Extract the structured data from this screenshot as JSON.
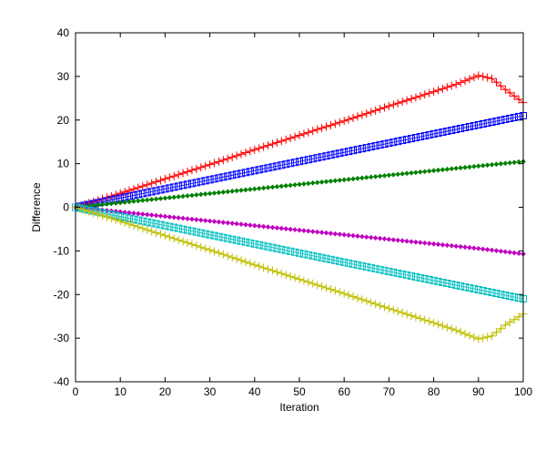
{
  "chart_data": {
    "type": "scatter",
    "title": "",
    "xlabel": "Iteration",
    "ylabel": "Difference",
    "xlim": [
      0,
      100
    ],
    "ylim": [
      -40,
      40
    ],
    "xticks": [
      "0",
      "10",
      "20",
      "30",
      "40",
      "50",
      "60",
      "70",
      "80",
      "90",
      "100"
    ],
    "yticks": [
      "40",
      "30",
      "20",
      "10",
      "0",
      "-10",
      "-20",
      "-30",
      "-40"
    ],
    "grid": false,
    "legend": "none",
    "series": [
      {
        "color": "#ff0000",
        "marker": "plus",
        "x": [
          0,
          10,
          20,
          30,
          40,
          50,
          60,
          70,
          80,
          85,
          90,
          93,
          96,
          100
        ],
        "y": [
          0,
          3.2,
          6.5,
          9.8,
          13.2,
          16.5,
          19.8,
          23.2,
          26.5,
          28.2,
          30.2,
          29.5,
          27.0,
          24.0
        ]
      },
      {
        "color": "#0000ff",
        "marker": "square",
        "x": [
          0,
          10,
          20,
          30,
          40,
          50,
          60,
          70,
          80,
          90,
          100
        ],
        "y": [
          0,
          2.1,
          4.2,
          6.3,
          8.4,
          10.5,
          12.6,
          14.7,
          16.8,
          18.9,
          21.0
        ]
      },
      {
        "color": "#008000",
        "marker": "diamond",
        "x": [
          0,
          10,
          20,
          30,
          40,
          50,
          60,
          70,
          80,
          90,
          100
        ],
        "y": [
          0,
          1.05,
          2.1,
          3.15,
          4.2,
          5.25,
          6.3,
          7.35,
          8.4,
          9.45,
          10.5
        ]
      },
      {
        "color": "#bf00bf",
        "marker": "diamond",
        "x": [
          0,
          10,
          20,
          30,
          40,
          50,
          60,
          70,
          80,
          90,
          100
        ],
        "y": [
          0,
          -1.05,
          -2.1,
          -3.15,
          -4.2,
          -5.25,
          -6.3,
          -7.35,
          -8.4,
          -9.45,
          -10.7
        ]
      },
      {
        "color": "#00bfbf",
        "marker": "square",
        "x": [
          0,
          10,
          20,
          30,
          40,
          50,
          60,
          70,
          80,
          90,
          100
        ],
        "y": [
          0,
          -2.1,
          -4.2,
          -6.3,
          -8.4,
          -10.5,
          -12.6,
          -14.7,
          -16.8,
          -18.9,
          -21.0
        ]
      },
      {
        "color": "#bfbf00",
        "marker": "plus",
        "x": [
          0,
          10,
          20,
          30,
          40,
          50,
          60,
          70,
          80,
          85,
          90,
          93,
          96,
          100
        ],
        "y": [
          0,
          -3.2,
          -6.5,
          -9.8,
          -13.2,
          -16.5,
          -19.8,
          -23.2,
          -26.5,
          -28.2,
          -30.2,
          -29.5,
          -27.0,
          -24.5
        ]
      }
    ]
  }
}
